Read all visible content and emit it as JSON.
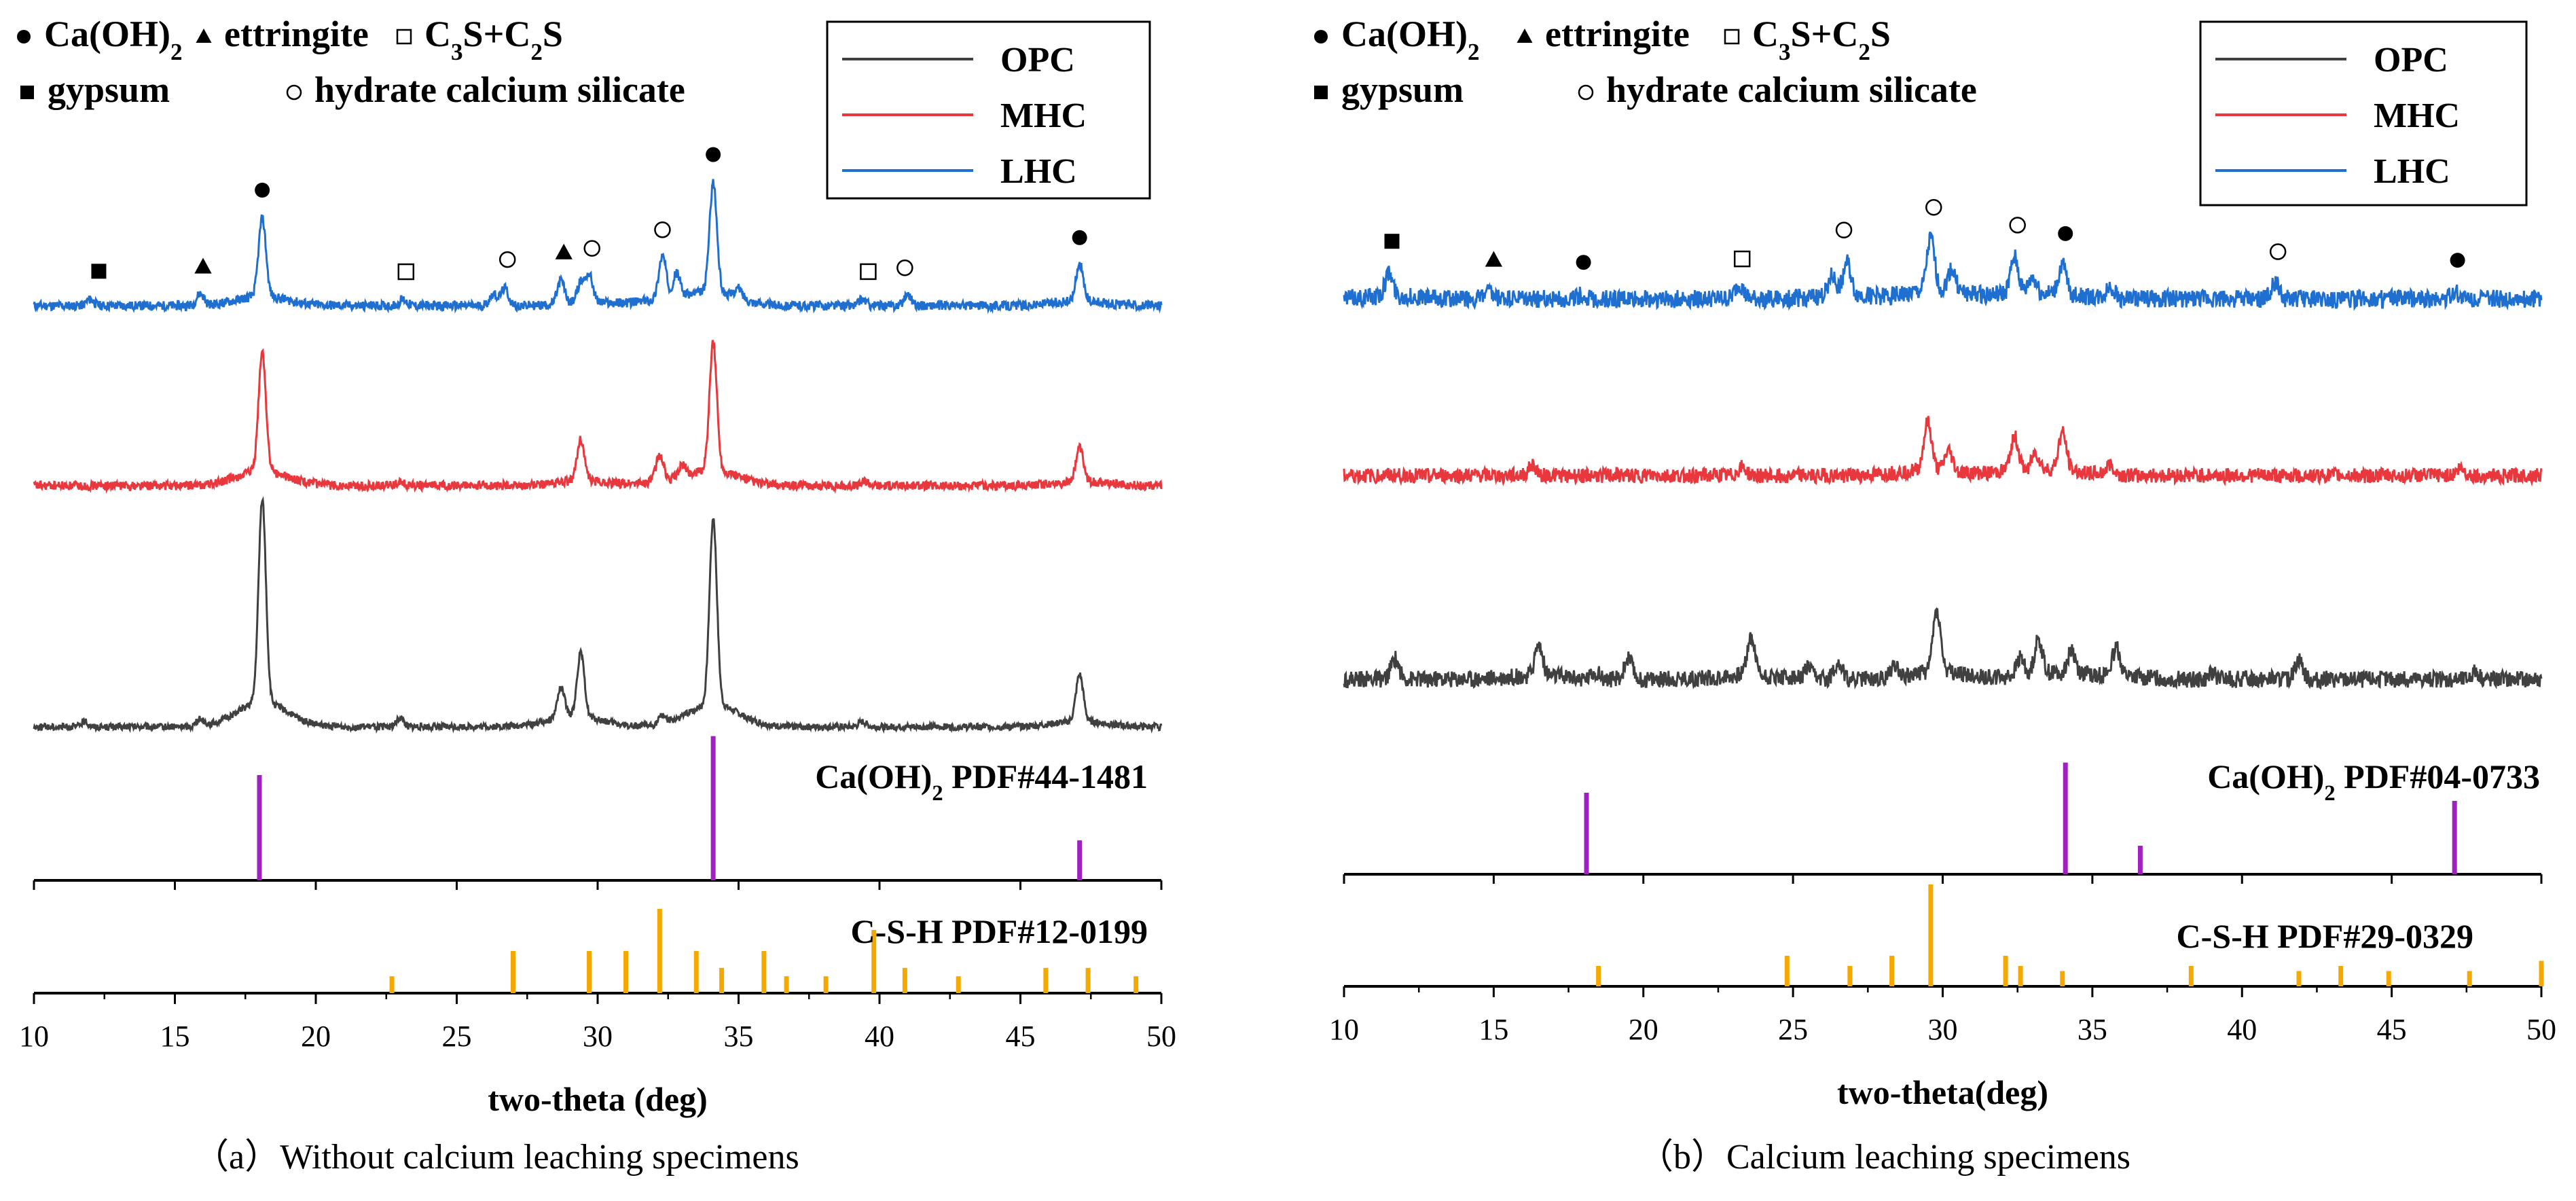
{
  "figures": [
    {
      "caption": "（a）Without calcium leaching specimens",
      "xlabel": "two-theta (deg)",
      "x_ticks": [
        "10",
        "15",
        "20",
        "25",
        "30",
        "35",
        "40",
        "45",
        "50"
      ],
      "legend": [
        {
          "label": "OPC",
          "color": "#404040"
        },
        {
          "label": "MHC",
          "color": "#e8383d"
        },
        {
          "label": "LHC",
          "color": "#1f6fd1"
        }
      ],
      "phase_legend": [
        {
          "symbol": "filled-circle",
          "label_main": "Ca(OH)",
          "label_sub": "2",
          "label_tail": ""
        },
        {
          "symbol": "filled-triangle",
          "label_main": "ettringite",
          "label_sub": "",
          "label_tail": ""
        },
        {
          "symbol": "open-square",
          "label_main": "C",
          "label_sub": "3",
          "label_tail": "S+C",
          "label_sub2": "2",
          "label_tail2": "S"
        },
        {
          "symbol": "filled-square",
          "label_main": "gypsum",
          "label_sub": "",
          "label_tail": ""
        },
        {
          "symbol": "open-circle",
          "label_main": "hydrate calcium silicate",
          "label_sub": "",
          "label_tail": ""
        }
      ],
      "ref_cah_label": "Ca(OH)",
      "ref_cah_sub": "2",
      "ref_cah_pdf": "PDF#44-1481",
      "ref_csh_label": "C-S-H PDF#12-0199"
    },
    {
      "caption": "（b）Calcium leaching specimens",
      "xlabel": "two-theta(deg)",
      "x_ticks": [
        "10",
        "15",
        "20",
        "25",
        "30",
        "35",
        "40",
        "45",
        "50"
      ],
      "legend": [
        {
          "label": "OPC",
          "color": "#404040"
        },
        {
          "label": "MHC",
          "color": "#e8383d"
        },
        {
          "label": "LHC",
          "color": "#1f6fd1"
        }
      ],
      "phase_legend": [
        {
          "symbol": "filled-circle",
          "label_main": "Ca(OH)",
          "label_sub": "2",
          "label_tail": ""
        },
        {
          "symbol": "filled-triangle",
          "label_main": "ettringite",
          "label_sub": "",
          "label_tail": ""
        },
        {
          "symbol": "open-square",
          "label_main": "C",
          "label_sub": "3",
          "label_tail": "S+C",
          "label_sub2": "2",
          "label_tail2": "S"
        },
        {
          "symbol": "filled-square",
          "label_main": "gypsum",
          "label_sub": "",
          "label_tail": ""
        },
        {
          "symbol": "open-circle",
          "label_main": "hydrate calcium silicate",
          "label_sub": "",
          "label_tail": ""
        }
      ],
      "ref_cah_label": "Ca(OH)",
      "ref_cah_sub": "2",
      "ref_cah_pdf": "PDF#04-0733",
      "ref_csh_label": "C-S-H PDF#29-0329"
    }
  ],
  "colors": {
    "opc": "#404040",
    "mhc": "#e8383d",
    "lhc": "#1f6fd1",
    "cah_ref": "#a020c0",
    "csh_ref": "#f5a800"
  },
  "chart_data": [
    {
      "type": "line",
      "title": "(a) Without calcium leaching specimens",
      "xlabel": "two-theta (deg)",
      "ylabel": "",
      "xlim": [
        10,
        50
      ],
      "series": [
        {
          "name": "LHC",
          "peaks": [
            [
              12.0,
              0.08
            ],
            [
              15.9,
              0.15
            ],
            [
              18.1,
              1.0
            ],
            [
              23.1,
              0.08
            ],
            [
              26.3,
              0.15
            ],
            [
              26.7,
              0.22
            ],
            [
              28.7,
              0.3
            ],
            [
              29.4,
              0.25
            ],
            [
              29.7,
              0.35
            ],
            [
              32.3,
              0.55
            ],
            [
              32.8,
              0.3
            ],
            [
              34.1,
              1.4
            ],
            [
              35.0,
              0.12
            ],
            [
              39.4,
              0.08
            ],
            [
              41.0,
              0.15
            ],
            [
              47.1,
              0.48
            ]
          ],
          "markers": [
            {
              "x": 12.3,
              "symbol": "filled-square"
            },
            {
              "x": 16.0,
              "symbol": "filled-triangle"
            },
            {
              "x": 18.1,
              "symbol": "filled-circle"
            },
            {
              "x": 23.2,
              "symbol": "open-square"
            },
            {
              "x": 26.8,
              "symbol": "open-circle"
            },
            {
              "x": 28.8,
              "symbol": "filled-triangle"
            },
            {
              "x": 29.8,
              "symbol": "open-circle"
            },
            {
              "x": 32.3,
              "symbol": "open-circle"
            },
            {
              "x": 34.1,
              "symbol": "filled-circle"
            },
            {
              "x": 39.6,
              "symbol": "open-square"
            },
            {
              "x": 40.9,
              "symbol": "open-circle"
            },
            {
              "x": 47.1,
              "symbol": "filled-circle"
            }
          ]
        },
        {
          "name": "MHC",
          "peaks": [
            [
              18.1,
              1.6
            ],
            [
              23.0,
              0.06
            ],
            [
              29.4,
              0.55
            ],
            [
              32.2,
              0.35
            ],
            [
              33.0,
              0.15
            ],
            [
              34.1,
              1.7
            ],
            [
              39.5,
              0.06
            ],
            [
              47.1,
              0.45
            ]
          ]
        },
        {
          "name": "OPC",
          "peaks": [
            [
              11.8,
              0.06
            ],
            [
              15.9,
              0.08
            ],
            [
              18.1,
              2.4
            ],
            [
              23.0,
              0.1
            ],
            [
              28.7,
              0.35
            ],
            [
              29.4,
              0.75
            ],
            [
              32.3,
              0.1
            ],
            [
              34.1,
              2.2
            ],
            [
              39.4,
              0.06
            ],
            [
              47.1,
              0.55
            ]
          ]
        }
      ],
      "reference": [
        {
          "name": "Ca(OH)2 PDF#44-1481",
          "x": [
            18.0,
            34.1,
            47.1
          ],
          "y": [
            100,
            137,
            38
          ]
        },
        {
          "name": "C-S-H PDF#12-0199",
          "x": [
            22.7,
            27.0,
            29.7,
            31.0,
            32.2,
            33.5,
            34.4,
            35.9,
            36.7,
            38.1,
            39.8,
            40.9,
            42.8,
            45.9,
            47.4,
            49.1
          ],
          "y": [
            16,
            40,
            40,
            40,
            80,
            40,
            24,
            40,
            16,
            16,
            60,
            24,
            16,
            24,
            24,
            16
          ]
        }
      ]
    },
    {
      "type": "line",
      "title": "(b) Calcium leaching specimens",
      "xlabel": "two-theta(deg)",
      "ylabel": "",
      "xlim": [
        10,
        50
      ],
      "series": [
        {
          "name": "LHC",
          "peaks": [
            [
              11.5,
              0.35
            ],
            [
              14.8,
              0.1
            ],
            [
              17.9,
              0.05
            ],
            [
              23.2,
              0.22
            ],
            [
              26.3,
              0.3
            ],
            [
              26.8,
              0.5
            ],
            [
              29.6,
              0.8
            ],
            [
              30.3,
              0.35
            ],
            [
              32.4,
              0.55
            ],
            [
              33.0,
              0.25
            ],
            [
              34.0,
              0.45
            ],
            [
              35.6,
              0.18
            ],
            [
              41.1,
              0.25
            ],
            [
              47.1,
              0.1
            ]
          ],
          "markers": [
            {
              "x": 11.6,
              "symbol": "filled-square"
            },
            {
              "x": 15.0,
              "symbol": "filled-triangle"
            },
            {
              "x": 18.0,
              "symbol": "filled-circle"
            },
            {
              "x": 23.3,
              "symbol": "open-square"
            },
            {
              "x": 26.7,
              "symbol": "open-circle"
            },
            {
              "x": 29.7,
              "symbol": "open-circle"
            },
            {
              "x": 32.5,
              "symbol": "open-circle"
            },
            {
              "x": 34.1,
              "symbol": "filled-circle"
            },
            {
              "x": 41.2,
              "symbol": "open-circle"
            },
            {
              "x": 47.2,
              "symbol": "filled-circle"
            }
          ]
        },
        {
          "name": "MHC",
          "peaks": [
            [
              16.3,
              0.15
            ],
            [
              23.3,
              0.12
            ],
            [
              29.5,
              0.7
            ],
            [
              30.2,
              0.3
            ],
            [
              32.4,
              0.5
            ],
            [
              33.1,
              0.25
            ],
            [
              34.0,
              0.55
            ],
            [
              35.6,
              0.15
            ],
            [
              47.3,
              0.1
            ]
          ]
        },
        {
          "name": "OPC",
          "peaks": [
            [
              11.7,
              0.3
            ],
            [
              16.5,
              0.45
            ],
            [
              18.4,
              0.1
            ],
            [
              19.5,
              0.3
            ],
            [
              23.6,
              0.55
            ],
            [
              25.5,
              0.15
            ],
            [
              26.5,
              0.25
            ],
            [
              28.4,
              0.2
            ],
            [
              29.8,
              0.9
            ],
            [
              32.6,
              0.25
            ],
            [
              33.2,
              0.5
            ],
            [
              34.3,
              0.35
            ],
            [
              35.8,
              0.4
            ],
            [
              39.0,
              0.08
            ],
            [
              41.9,
              0.3
            ],
            [
              47.8,
              0.12
            ]
          ]
        }
      ],
      "reference": [
        {
          "name": "Ca(OH)2 PDF#04-0733",
          "x": [
            18.1,
            34.1,
            36.6,
            47.1
          ],
          "y": [
            100,
            137,
            35,
            90
          ]
        },
        {
          "name": "C-S-H PDF#29-0329",
          "x": [
            18.5,
            24.8,
            26.9,
            28.3,
            29.6,
            32.1,
            32.6,
            34.0,
            38.3,
            41.9,
            43.3,
            44.9,
            47.6,
            50.0
          ],
          "y": [
            20,
            30,
            20,
            30,
            100,
            30,
            20,
            15,
            20,
            15,
            20,
            15,
            15,
            25
          ]
        }
      ]
    }
  ]
}
